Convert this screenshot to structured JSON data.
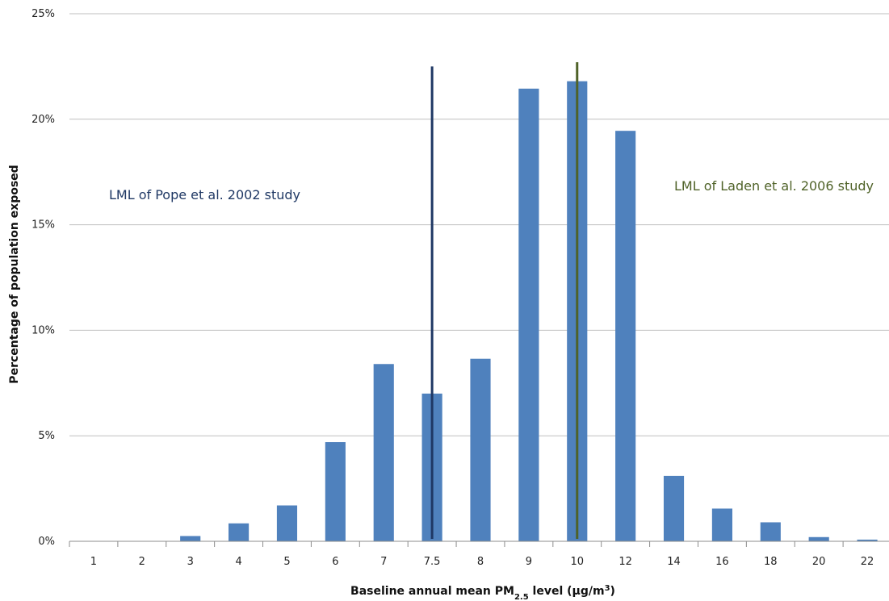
{
  "chart_data": {
    "type": "bar",
    "categories": [
      "1",
      "2",
      "3",
      "4",
      "5",
      "6",
      "7",
      "7.5",
      "8",
      "9",
      "10",
      "12",
      "14",
      "16",
      "18",
      "20",
      "22"
    ],
    "values": [
      0,
      0,
      0.25,
      0.85,
      1.7,
      4.7,
      8.4,
      7.0,
      8.65,
      21.45,
      21.8,
      19.45,
      3.1,
      1.55,
      0.9,
      0.2,
      0.08
    ],
    "xlabel": "Baseline annual mean PM",
    "xlabel_sub": "2.5",
    "xlabel_rest": " level (µg/m",
    "xlabel_sup": "3",
    "xlabel_close": ")",
    "ylabel": "Percentage of population exposed",
    "ylim": [
      0,
      25
    ],
    "yticks": [
      "0%",
      "5%",
      "10%",
      "15%",
      "20%",
      "25%"
    ],
    "ytick_values": [
      0,
      5,
      10,
      15,
      20,
      25
    ],
    "grid": true,
    "bar_color": "#4f81bd",
    "reference_lines": [
      {
        "category": "7.5",
        "value_top": 22.5,
        "color": "#1f3864",
        "label": "LML of Pope et al. 2002 study",
        "label_color": "#1f3864"
      },
      {
        "category": "10",
        "value_top": 22.7,
        "color": "#4f6228",
        "label": "LML of Laden et al. 2006 study",
        "label_color": "#4f6228"
      }
    ]
  }
}
